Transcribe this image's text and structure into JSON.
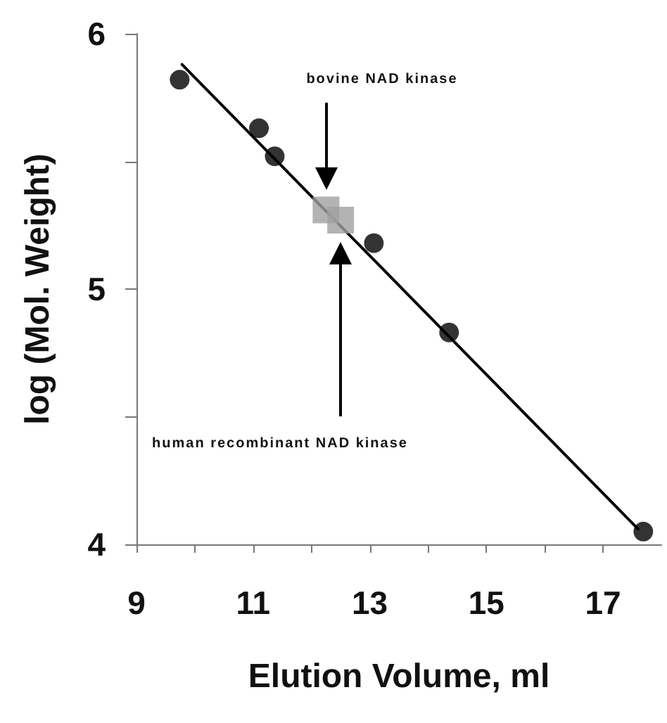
{
  "chart_data": {
    "type": "scatter",
    "xlabel": "Elution Volume, ml",
    "ylabel": "log (Mol. Weight)",
    "xlim": [
      9,
      18
    ],
    "xticks": [
      9,
      {
        "value": 10,
        "label": null
      },
      11,
      {
        "value": 12,
        "label": null
      },
      13,
      {
        "value": 14,
        "label": null
      },
      15,
      {
        "value": 16,
        "label": null
      },
      17
    ],
    "ylim": [
      4,
      6
    ],
    "yticks": [
      4,
      {
        "value": 4.5,
        "label": null
      },
      5,
      {
        "value": 5.5,
        "label": null
      },
      6
    ],
    "grid": false,
    "series": [
      {
        "color": "#000000",
        "marker": "circle",
        "x": [
          9.74,
          11.1,
          11.37,
          13.07,
          14.36,
          17.69
        ],
        "values": [
          5.82,
          5.63,
          5.52,
          5.18,
          4.83,
          4.05
        ]
      },
      {
        "color": "#a0a0a0",
        "marker": "square",
        "x": [
          12.25,
          12.5
        ],
        "values": [
          5.31,
          5.27
        ]
      },
      {
        "type": "line",
        "color": "#000000",
        "marker": "none",
        "x": [
          9.78,
          17.6
        ],
        "values": [
          5.88,
          4.06
        ]
      }
    ],
    "annotations": [
      "bovine NAD kinase",
      "human recombinant NAD kinase"
    ]
  }
}
